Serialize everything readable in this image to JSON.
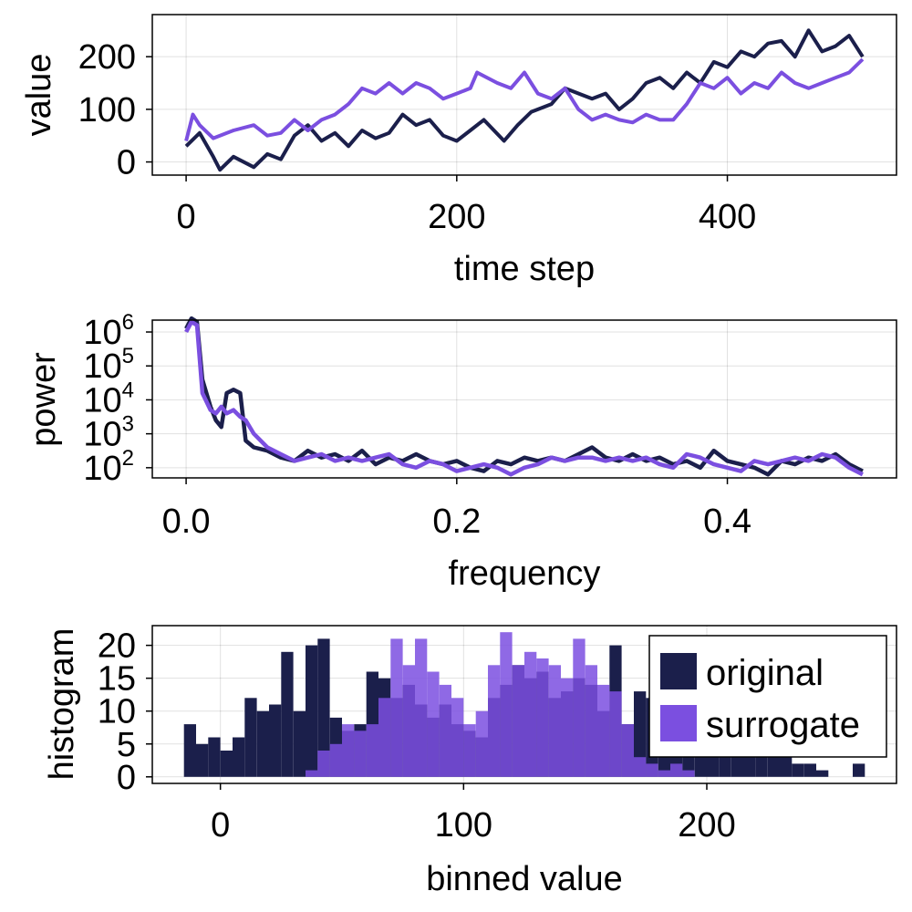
{
  "colors": {
    "original": "#1b1f4b",
    "surrogate": "#7b4fe0"
  },
  "chart_data": [
    {
      "type": "line",
      "xlabel": "time step",
      "ylabel": "value",
      "xlim": [
        -25,
        525
      ],
      "ylim": [
        -25,
        280
      ],
      "xticks": [
        0,
        200,
        400
      ],
      "yticks": [
        0,
        100,
        200
      ],
      "grid": true,
      "series": [
        {
          "name": "original",
          "x": [
            0,
            10,
            20,
            25,
            35,
            50,
            60,
            70,
            80,
            90,
            100,
            110,
            120,
            130,
            140,
            150,
            160,
            170,
            180,
            190,
            200,
            210,
            220,
            235,
            245,
            255,
            270,
            280,
            300,
            310,
            320,
            330,
            340,
            350,
            360,
            370,
            380,
            390,
            400,
            410,
            420,
            430,
            440,
            450,
            460,
            470,
            480,
            490,
            500
          ],
          "y": [
            30,
            55,
            10,
            -15,
            10,
            -10,
            15,
            5,
            50,
            70,
            40,
            55,
            30,
            60,
            45,
            55,
            90,
            70,
            80,
            50,
            40,
            60,
            80,
            40,
            70,
            95,
            110,
            140,
            120,
            130,
            100,
            120,
            150,
            160,
            140,
            170,
            150,
            190,
            180,
            210,
            200,
            225,
            230,
            200,
            250,
            210,
            220,
            240,
            200
          ]
        },
        {
          "name": "surrogate",
          "x": [
            0,
            5,
            10,
            20,
            35,
            50,
            60,
            70,
            80,
            90,
            100,
            110,
            120,
            130,
            140,
            150,
            160,
            170,
            180,
            190,
            200,
            210,
            215,
            230,
            240,
            250,
            260,
            270,
            280,
            290,
            300,
            310,
            320,
            330,
            340,
            350,
            360,
            370,
            380,
            390,
            400,
            410,
            420,
            430,
            440,
            450,
            460,
            470,
            480,
            490,
            500
          ],
          "y": [
            40,
            90,
            70,
            45,
            60,
            70,
            50,
            55,
            80,
            60,
            80,
            90,
            110,
            140,
            130,
            150,
            130,
            150,
            140,
            120,
            130,
            140,
            170,
            150,
            140,
            170,
            130,
            120,
            140,
            100,
            80,
            90,
            80,
            75,
            90,
            80,
            80,
            110,
            150,
            140,
            160,
            130,
            150,
            140,
            170,
            150,
            140,
            150,
            160,
            170,
            195
          ]
        }
      ]
    },
    {
      "type": "line",
      "yscale": "log",
      "xlabel": "frequency",
      "ylabel": "power",
      "xlim": [
        -0.025,
        0.525
      ],
      "ylim_exp": [
        1.7,
        6.35
      ],
      "xticks": [
        "0.0",
        "0.2",
        "0.4"
      ],
      "ytick_base": "10",
      "ytick_exps": [
        "2",
        "3",
        "4",
        "5",
        "6"
      ],
      "grid": true,
      "series": [
        {
          "name": "original",
          "x": [
            0,
            0.004,
            0.008,
            0.012,
            0.018,
            0.022,
            0.026,
            0.03,
            0.035,
            0.04,
            0.044,
            0.05,
            0.06,
            0.07,
            0.08,
            0.09,
            0.1,
            0.11,
            0.12,
            0.13,
            0.14,
            0.15,
            0.16,
            0.17,
            0.18,
            0.19,
            0.2,
            0.21,
            0.22,
            0.23,
            0.24,
            0.25,
            0.26,
            0.27,
            0.28,
            0.29,
            0.3,
            0.31,
            0.32,
            0.33,
            0.34,
            0.35,
            0.36,
            0.37,
            0.38,
            0.39,
            0.4,
            0.41,
            0.42,
            0.43,
            0.44,
            0.45,
            0.46,
            0.47,
            0.48,
            0.49,
            0.5
          ],
          "y_exp": [
            6.1,
            6.4,
            6.3,
            4.6,
            3.8,
            3.4,
            3.2,
            4.2,
            4.3,
            4.2,
            2.8,
            2.6,
            2.5,
            2.3,
            2.2,
            2.5,
            2.3,
            2.4,
            2.2,
            2.5,
            2.1,
            2.3,
            2.2,
            2.4,
            2.2,
            2.1,
            2.2,
            2.0,
            1.9,
            2.2,
            2.1,
            2.3,
            2.2,
            2.3,
            2.2,
            2.4,
            2.6,
            2.3,
            2.2,
            2.4,
            2.2,
            2.3,
            2.1,
            2.2,
            2.0,
            2.5,
            2.2,
            2.1,
            2.0,
            1.8,
            2.2,
            2.1,
            2.3,
            2.2,
            2.4,
            2.1,
            1.9
          ]
        },
        {
          "name": "surrogate",
          "x": [
            0,
            0.004,
            0.008,
            0.012,
            0.018,
            0.022,
            0.026,
            0.03,
            0.035,
            0.04,
            0.044,
            0.05,
            0.06,
            0.07,
            0.08,
            0.09,
            0.1,
            0.11,
            0.12,
            0.13,
            0.14,
            0.15,
            0.16,
            0.17,
            0.18,
            0.19,
            0.2,
            0.21,
            0.22,
            0.23,
            0.24,
            0.25,
            0.26,
            0.27,
            0.28,
            0.29,
            0.3,
            0.31,
            0.32,
            0.33,
            0.34,
            0.35,
            0.36,
            0.37,
            0.38,
            0.39,
            0.4,
            0.41,
            0.42,
            0.43,
            0.44,
            0.45,
            0.46,
            0.47,
            0.48,
            0.49,
            0.5
          ],
          "y_exp": [
            6.0,
            6.3,
            6.2,
            4.2,
            3.7,
            3.6,
            3.8,
            3.6,
            3.7,
            3.5,
            3.4,
            3.0,
            2.6,
            2.4,
            2.2,
            2.3,
            2.4,
            2.2,
            2.3,
            2.2,
            2.3,
            2.4,
            2.1,
            2.0,
            2.2,
            2.1,
            1.9,
            2.0,
            2.1,
            2.0,
            1.8,
            2.0,
            2.1,
            2.3,
            2.2,
            2.3,
            2.3,
            2.2,
            2.3,
            2.2,
            2.3,
            2.1,
            2.0,
            2.4,
            2.3,
            2.1,
            2.0,
            1.9,
            2.2,
            2.1,
            2.2,
            2.3,
            2.2,
            2.4,
            2.3,
            2.0,
            1.8
          ]
        }
      ]
    },
    {
      "type": "bar",
      "xlabel": "binned value",
      "ylabel": "histogram",
      "xlim": [
        -28,
        278
      ],
      "ylim": [
        -1,
        23
      ],
      "xticks": [
        0,
        100,
        200
      ],
      "yticks": [
        0,
        5,
        10,
        15,
        20
      ],
      "bin_width": 5,
      "grid": true,
      "series": [
        {
          "name": "original",
          "bin_starts": [
            -15,
            -10,
            -5,
            0,
            5,
            10,
            15,
            20,
            25,
            30,
            35,
            40,
            45,
            50,
            55,
            60,
            65,
            70,
            75,
            80,
            85,
            90,
            95,
            100,
            105,
            110,
            115,
            120,
            125,
            130,
            135,
            140,
            145,
            150,
            155,
            160,
            165,
            170,
            175,
            180,
            185,
            190,
            195,
            200,
            205,
            210,
            215,
            220,
            225,
            230,
            235,
            240,
            245,
            250,
            255,
            260
          ],
          "values": [
            8,
            5,
            6,
            4,
            6,
            12,
            10,
            11,
            19,
            10,
            20,
            21,
            9,
            7,
            8,
            16,
            15,
            12,
            14,
            11,
            9,
            11,
            8,
            7,
            6,
            12,
            14,
            17,
            15,
            16,
            12,
            13,
            15,
            14,
            10,
            20,
            8,
            13,
            12,
            14,
            13,
            11,
            13,
            10,
            14,
            10,
            10,
            12,
            11,
            3,
            2,
            2,
            1,
            0,
            0,
            2
          ]
        },
        {
          "name": "surrogate",
          "bin_starts": [
            35,
            40,
            45,
            50,
            55,
            60,
            65,
            70,
            75,
            80,
            85,
            90,
            95,
            100,
            105,
            110,
            115,
            120,
            125,
            130,
            135,
            140,
            145,
            150,
            155,
            160,
            165,
            170,
            175,
            180,
            185,
            190
          ],
          "values": [
            1,
            4,
            5,
            8,
            7,
            8,
            12,
            21,
            17,
            21,
            16,
            14,
            12,
            8,
            10,
            17,
            22,
            17,
            19,
            18,
            17,
            15,
            21,
            17,
            14,
            13,
            8,
            3,
            2,
            1,
            2,
            1
          ]
        }
      ]
    }
  ],
  "legend": {
    "items": [
      {
        "name": "original"
      },
      {
        "name": "surrogate"
      }
    ],
    "position": "top-right"
  }
}
